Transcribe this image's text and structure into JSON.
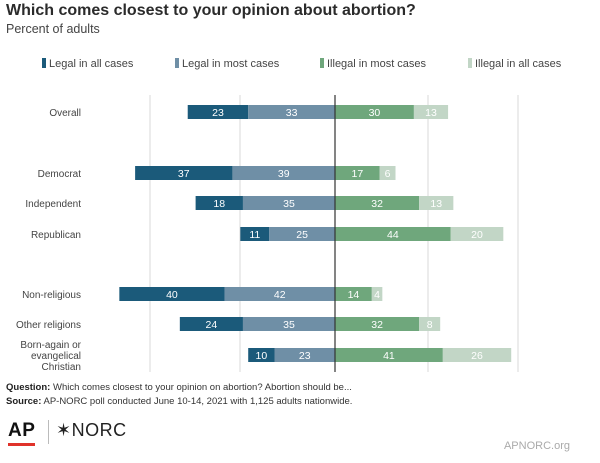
{
  "header": {
    "title": "Which comes closest to your opinion about abortion?",
    "subtitle": "Percent of adults"
  },
  "footer": {
    "question_label": "Question:",
    "question_text": " Which comes closest to your opinion on abortion? Abortion should be...",
    "source_label": "Source:",
    "source_text": " AP-NORC poll conducted June 10-14, 2021 with 1,125 adults nationwide.",
    "logo_ap": "AP",
    "logo_norc": "✶NORC",
    "website": "APNORC.org"
  },
  "colors": {
    "legal_all": "#1b5a7a",
    "legal_most": "#6f8fa6",
    "illegal_most": "#6fa77c",
    "illegal_all": "#c2d6c6",
    "grid": "#d9d9d9",
    "center_line": "#333333"
  },
  "chart_data": {
    "type": "bar",
    "orientation": "horizontal-diverging",
    "legend_position": "top",
    "grid": true,
    "categories": [
      "Overall",
      "Democrat",
      "Independent",
      "Republican",
      "Non-religious",
      "Other religions",
      "Born-again or evangelical Christian"
    ],
    "category_lines": [
      [
        "Overall"
      ],
      [
        "Democrat"
      ],
      [
        "Independent"
      ],
      [
        "Republican"
      ],
      [
        "Non-religious"
      ],
      [
        "Other religions"
      ],
      [
        "Born-again or",
        "evangelical",
        "Christian"
      ]
    ],
    "series": [
      {
        "name": "Legal in all cases",
        "side": "left",
        "values": [
          23,
          37,
          18,
          11,
          40,
          24,
          10
        ]
      },
      {
        "name": "Legal in most cases",
        "side": "left",
        "values": [
          33,
          39,
          35,
          25,
          42,
          35,
          23
        ]
      },
      {
        "name": "Illegal in most cases",
        "side": "right",
        "values": [
          30,
          17,
          32,
          44,
          14,
          32,
          41
        ]
      },
      {
        "name": "Illegal in all cases",
        "side": "right",
        "values": [
          13,
          6,
          13,
          20,
          4,
          8,
          26
        ]
      }
    ]
  }
}
